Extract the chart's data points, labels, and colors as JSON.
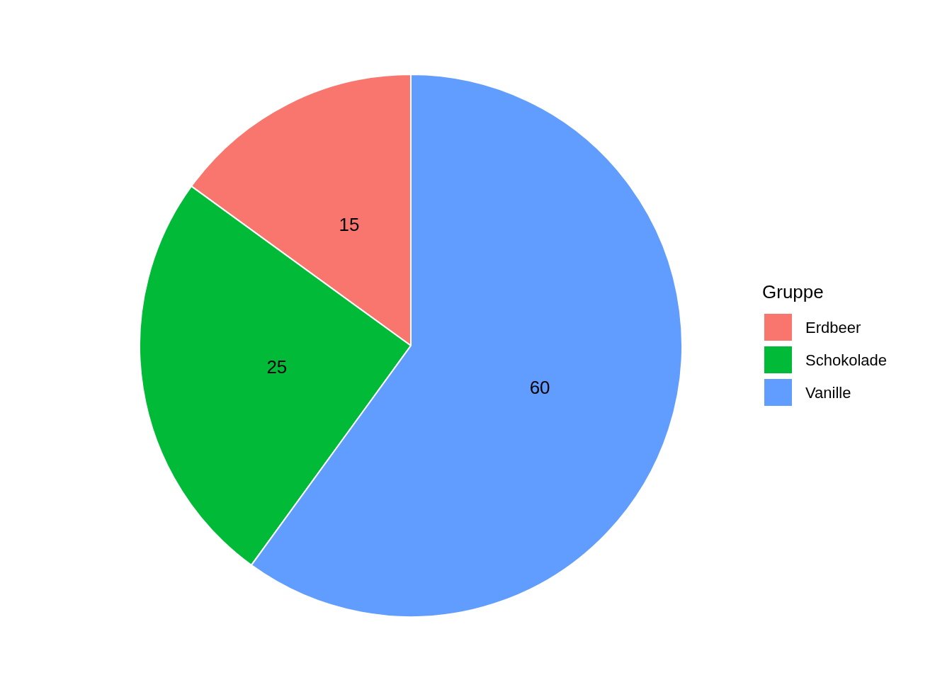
{
  "chart_data": {
    "type": "pie",
    "categories": [
      "Erdbeer",
      "Schokolade",
      "Vanille"
    ],
    "values": [
      15,
      25,
      60
    ],
    "colors": [
      "#f8766d",
      "#00ba38",
      "#619cff"
    ],
    "legend_title": "Gruppe",
    "legend": "right",
    "data_labels": true
  }
}
